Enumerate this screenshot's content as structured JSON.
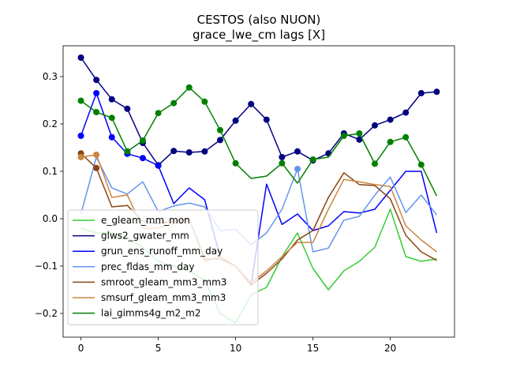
{
  "chart_data": {
    "type": "line",
    "title": "CESTOS (also NUON)",
    "subtitle": "grace_lwe_cm lags [X]",
    "xlabel": "",
    "ylabel": "",
    "xlim": [
      -1.15,
      24.15
    ],
    "ylim": [
      -0.25,
      0.365
    ],
    "xticks": [
      0,
      5,
      10,
      15,
      20
    ],
    "xtick_labels": [
      "0",
      "5",
      "10",
      "15",
      "20"
    ],
    "yticks": [
      -0.2,
      -0.1,
      0.0,
      0.1,
      0.2,
      0.3
    ],
    "ytick_labels": [
      "−0.2",
      "−0.1",
      "0.0",
      "0.1",
      "0.2",
      "0.3"
    ],
    "legend_position": "lower-left",
    "x": [
      0,
      1,
      2,
      3,
      4,
      5,
      6,
      7,
      8,
      9,
      10,
      11,
      12,
      13,
      14,
      15,
      16,
      17,
      18,
      19,
      20,
      21,
      22,
      23
    ],
    "series": [
      {
        "name": "e_gleam_mm_mon",
        "color": "#32cd32",
        "values": [
          -0.02,
          -0.03,
          -0.03,
          -0.04,
          -0.06,
          -0.09,
          -0.1,
          -0.11,
          -0.13,
          -0.2,
          -0.22,
          -0.16,
          -0.145,
          -0.08,
          -0.03,
          -0.105,
          -0.15,
          -0.11,
          -0.09,
          -0.06,
          0.02,
          -0.08,
          -0.09,
          -0.085
        ],
        "markers": []
      },
      {
        "name": "glws2_gwater_mm",
        "color": "#000080",
        "values": [
          0.34,
          0.293,
          0.252,
          0.232,
          0.16,
          0.113,
          0.143,
          0.14,
          0.142,
          0.166,
          0.207,
          0.242,
          0.209,
          0.13,
          0.142,
          0.123,
          0.138,
          0.18,
          0.167,
          0.197,
          0.209,
          0.224,
          0.265,
          0.268
        ],
        "markers": [
          0,
          1,
          2,
          3,
          4,
          5,
          6,
          7,
          8,
          9,
          10,
          11,
          12,
          13,
          14,
          15,
          16,
          17,
          18,
          19,
          20,
          21,
          22,
          23
        ]
      },
      {
        "name": "grun_ens_runoff_mm_day",
        "color": "#0000ff",
        "values": [
          0.175,
          0.265,
          0.172,
          0.137,
          0.128,
          0.112,
          0.032,
          0.065,
          0.04,
          -0.08,
          -0.1,
          -0.14,
          0.073,
          -0.012,
          0.01,
          -0.025,
          -0.015,
          0.015,
          0.012,
          0.02,
          0.06,
          0.1,
          0.1,
          -0.03
        ],
        "markers": [
          0,
          1,
          2,
          3,
          4,
          5
        ]
      },
      {
        "name": "prec_fldas_mm_day",
        "color": "#6495ed",
        "values": [
          0.01,
          0.13,
          0.065,
          0.052,
          0.078,
          0.015,
          0.027,
          0.033,
          0.025,
          -0.025,
          -0.022,
          -0.055,
          -0.03,
          0.02,
          0.105,
          -0.07,
          -0.062,
          -0.003,
          0.005,
          0.05,
          0.088,
          0.013,
          0.05,
          0.008
        ],
        "markers": [
          14
        ]
      },
      {
        "name": "smroot_gleam_mm3_mm3",
        "color": "#8b4513",
        "values": [
          0.138,
          0.107,
          0.025,
          0.028,
          -0.005,
          -0.01,
          -0.005,
          0.0,
          -0.085,
          -0.085,
          -0.1,
          -0.14,
          -0.115,
          -0.085,
          -0.045,
          -0.025,
          0.045,
          0.097,
          0.072,
          0.07,
          0.042,
          -0.035,
          -0.07,
          -0.088
        ],
        "markers": [
          0,
          1
        ]
      },
      {
        "name": "smsurf_gleam_mm3_mm3",
        "color": "#cd853f",
        "values": [
          0.13,
          0.135,
          0.045,
          0.05,
          -0.02,
          -0.02,
          -0.01,
          0.0,
          -0.09,
          -0.08,
          -0.1,
          -0.135,
          -0.11,
          -0.08,
          -0.05,
          -0.05,
          0.02,
          0.083,
          0.078,
          0.072,
          0.068,
          -0.015,
          -0.045,
          -0.07
        ],
        "markers": [
          0,
          1
        ]
      },
      {
        "name": "lai_gimms4g_m2_m2",
        "color": "#008000",
        "values": [
          0.249,
          0.225,
          0.213,
          0.142,
          0.165,
          0.223,
          0.244,
          0.277,
          0.247,
          0.187,
          0.117,
          0.085,
          0.09,
          0.117,
          0.075,
          0.125,
          0.13,
          0.175,
          0.18,
          0.116,
          0.162,
          0.172,
          0.114,
          0.048
        ],
        "markers": [
          0,
          1,
          2,
          3,
          4,
          5,
          6,
          7,
          8,
          9,
          10,
          13,
          15,
          17,
          18,
          19,
          20,
          21,
          22
        ]
      }
    ]
  }
}
